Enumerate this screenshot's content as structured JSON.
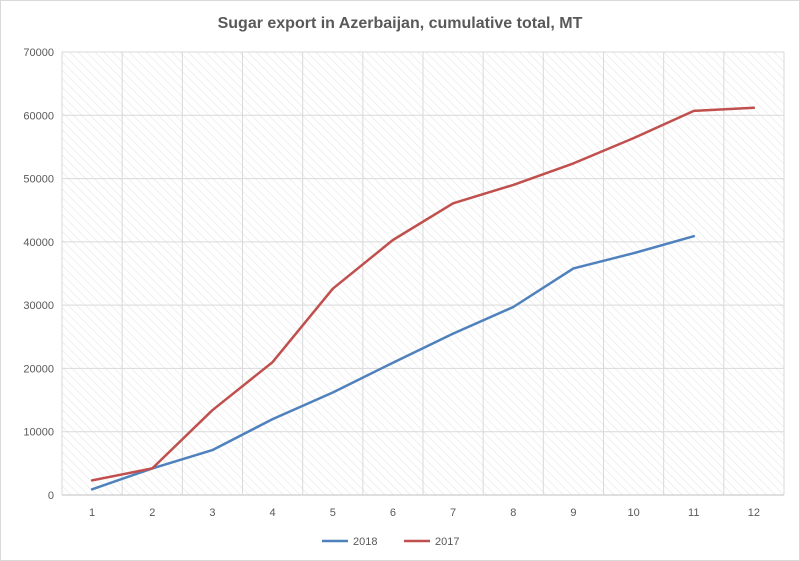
{
  "chart_data": {
    "type": "line",
    "title": "Sugar export in Azerbaijan, cumulative total, MT",
    "xlabel": "",
    "ylabel": "",
    "x": [
      1,
      2,
      3,
      4,
      5,
      6,
      7,
      8,
      9,
      10,
      11,
      12
    ],
    "ylim": [
      0,
      70000
    ],
    "yticks": [
      0,
      10000,
      20000,
      30000,
      40000,
      50000,
      60000,
      70000
    ],
    "grid": true,
    "legend_position": "bottom",
    "series": [
      {
        "name": "2018",
        "color": "#4f81bd",
        "values": [
          900,
          4200,
          7100,
          12000,
          16200,
          20900,
          25500,
          29700,
          35800,
          38200,
          40900,
          null
        ]
      },
      {
        "name": "2017",
        "color": "#c0504d",
        "values": [
          2300,
          4200,
          13400,
          21000,
          32600,
          40300,
          46100,
          49000,
          52400,
          56400,
          60700,
          61200
        ]
      }
    ]
  }
}
